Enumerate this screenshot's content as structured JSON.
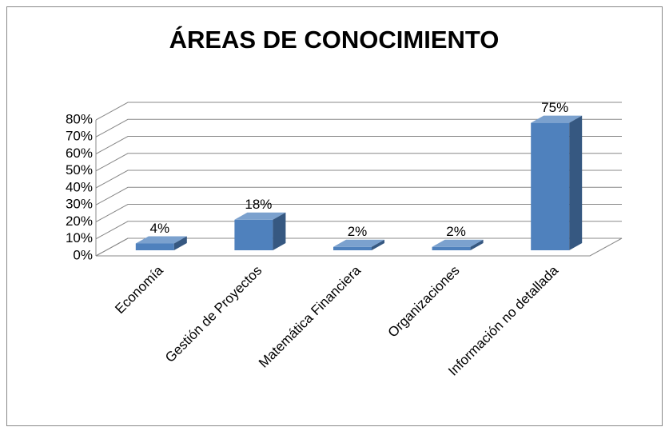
{
  "chart_data": {
    "type": "bar3d",
    "title": "ÁREAS DE CONOCIMIENTO",
    "categories": [
      "Economía",
      "Gestión de Proyectos",
      "Matemática Financiera",
      "Organizaciones",
      "Información no detallada"
    ],
    "values": [
      4,
      18,
      2,
      2,
      75
    ],
    "value_labels": [
      "4%",
      "18%",
      "2%",
      "2%",
      "75%"
    ],
    "color": "#4f81bd",
    "ylim": [
      0,
      80
    ],
    "yticks": [
      {
        "value": 0,
        "label": "0%"
      },
      {
        "value": 10,
        "label": "10%"
      },
      {
        "value": 20,
        "label": "20%"
      },
      {
        "value": 30,
        "label": "30%"
      },
      {
        "value": 40,
        "label": "40%"
      },
      {
        "value": 50,
        "label": "50%"
      },
      {
        "value": 60,
        "label": "60%"
      },
      {
        "value": 70,
        "label": "70%"
      },
      {
        "value": 80,
        "label": "80%"
      }
    ],
    "grid": true
  }
}
